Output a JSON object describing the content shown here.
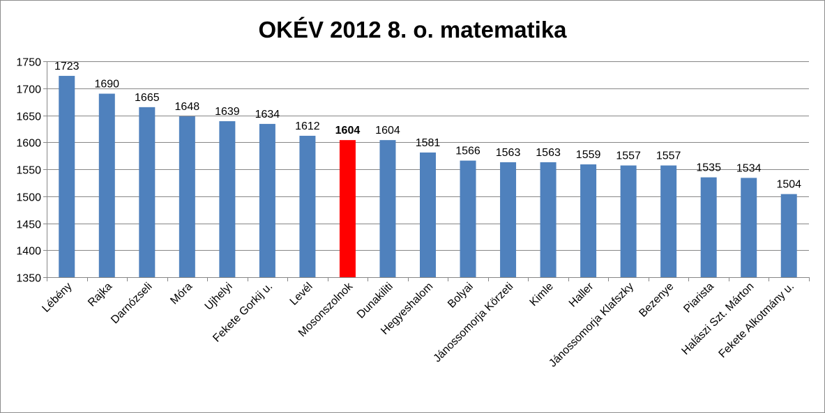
{
  "chart_data": {
    "type": "bar",
    "title": "OKÉV 2012 8. o. matematika",
    "xlabel": "",
    "ylabel": "",
    "ylim": [
      1350,
      1750
    ],
    "yticks": [
      1350,
      1400,
      1450,
      1500,
      1550,
      1600,
      1650,
      1700,
      1750
    ],
    "grid": true,
    "legend": "none",
    "categories": [
      "Lébény",
      "Rajka",
      "Darnózseli",
      "Móra",
      "Ujhelyi",
      "Fekete Gorkij u.",
      "Levél",
      "Mosonszolnok",
      "Dunakiliti",
      "Hegyeshalom",
      "Bolyai",
      "Jánossomorja Körzeti",
      "Kimle",
      "Haller",
      "Jánossomorja Klafszky",
      "Bezenye",
      "Piarista",
      "Halászi Szt. Márton",
      "Fekete Alkotmány u."
    ],
    "values": [
      1723,
      1690,
      1665,
      1648,
      1639,
      1634,
      1612,
      1604,
      1604,
      1581,
      1566,
      1563,
      1563,
      1559,
      1557,
      1557,
      1535,
      1534,
      1504
    ],
    "highlight_index": 7,
    "bar_color": "#4f81bd",
    "highlight_color": "#ff0000",
    "highlight_label_color": "#ff0000",
    "gridline_color": "#868686"
  }
}
